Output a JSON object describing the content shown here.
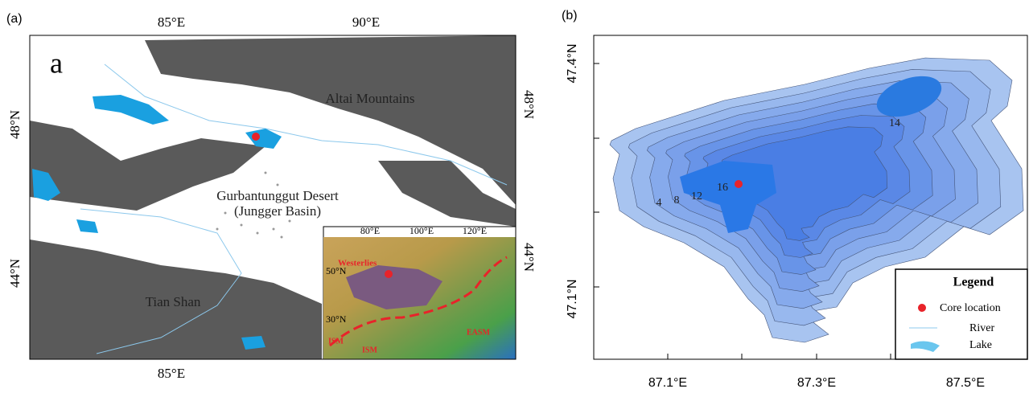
{
  "panel_a": {
    "tag": "(a)",
    "letter": "a",
    "lon_top": [
      "85°E",
      "90°E"
    ],
    "lon_bottom": [
      "85°E"
    ],
    "lat_left": [
      "48°N",
      "44°N"
    ],
    "lat_right": [
      "48°N",
      "44°N"
    ],
    "labels": [
      "Altai Mountains",
      "Gurbantunggut Desert",
      "(Jungger Basin)",
      "Tian Shan"
    ],
    "inset": {
      "lon": [
        "80°E",
        "100°E",
        "120°E"
      ],
      "lat": [
        "50°N",
        "30°N"
      ],
      "labels": [
        "Westerlies",
        "ISM",
        "ISM",
        "EASM"
      ]
    }
  },
  "panel_b": {
    "tag": "(b)",
    "lat": [
      "47.4°N",
      "47.1°N"
    ],
    "lon": [
      "87.1°E",
      "87.3°E",
      "87.5°E"
    ],
    "contours": [
      "4",
      "8",
      "12",
      "16",
      "14"
    ],
    "legend": {
      "title": "Legend",
      "items": [
        "Core location",
        "River",
        "Lake"
      ]
    }
  }
}
